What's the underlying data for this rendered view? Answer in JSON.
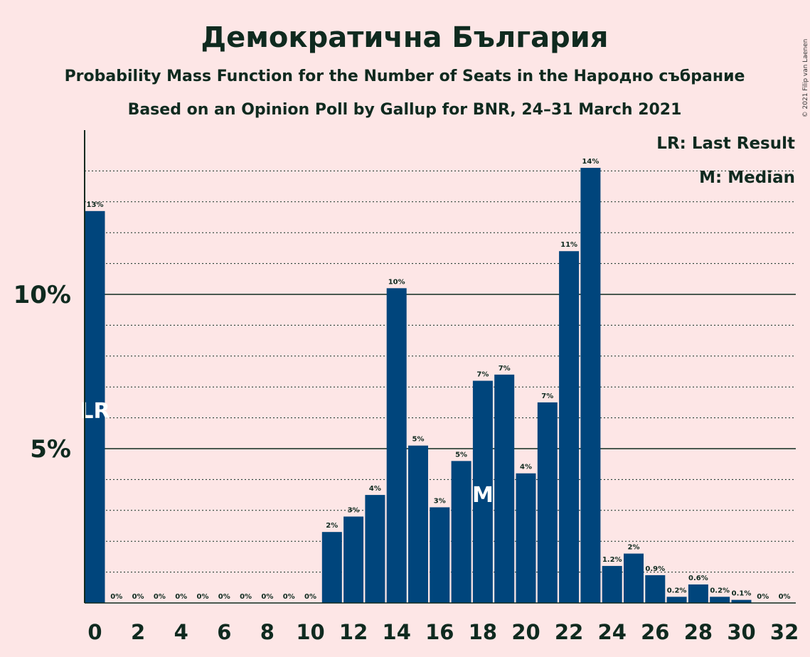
{
  "title": "Демократична България",
  "subtitle1": "Probability Mass Function for the Number of Seats in the Народно събрание",
  "subtitle2": "Based on an Opinion Poll by Gallup for BNR, 24–31 March 2021",
  "copyright": "© 2021 Filip van Laenen",
  "legend": {
    "lr": "LR: Last Result",
    "median": "M: Median"
  },
  "colors": {
    "bar": "#00457c",
    "background": "#fde6e6",
    "text": "#0f2a1f"
  },
  "chart_data": {
    "type": "bar",
    "xlabel": "",
    "ylabel": "",
    "ylim": [
      0,
      15.3
    ],
    "grid": "dotted every 1%, solid at 5% and 10%",
    "legend_placement": "top-right",
    "y_ticks": [
      {
        "value": 5,
        "label": "5%"
      },
      {
        "value": 10,
        "label": "10%"
      }
    ],
    "x_ticks": [
      0,
      2,
      4,
      6,
      8,
      10,
      12,
      14,
      16,
      18,
      20,
      22,
      24,
      26,
      28,
      30,
      32
    ],
    "categories": [
      0,
      1,
      2,
      3,
      4,
      5,
      6,
      7,
      8,
      9,
      10,
      11,
      12,
      13,
      14,
      15,
      16,
      17,
      18,
      19,
      20,
      21,
      22,
      23,
      24,
      25,
      26,
      27,
      28,
      29,
      30,
      31,
      32
    ],
    "values": [
      12.7,
      0,
      0,
      0,
      0,
      0,
      0,
      0,
      0,
      0,
      0,
      2.3,
      2.8,
      3.5,
      10.2,
      5.1,
      3.1,
      4.6,
      7.2,
      7.4,
      4.2,
      6.5,
      11.4,
      14.1,
      1.2,
      1.6,
      0.9,
      0.2,
      0.6,
      0.2,
      0.1,
      0,
      0
    ],
    "labels": [
      "13%",
      "0%",
      "0%",
      "0%",
      "0%",
      "0%",
      "0%",
      "0%",
      "0%",
      "0%",
      "0%",
      "2%",
      "3%",
      "4%",
      "10%",
      "5%",
      "3%",
      "5%",
      "7%",
      "7%",
      "4%",
      "7%",
      "11%",
      "14%",
      "1.2%",
      "2%",
      "0.9%",
      "0.2%",
      "0.6%",
      "0.2%",
      "0.1%",
      "0%",
      "0%"
    ],
    "last_result": {
      "seats": 0,
      "label": "LR"
    },
    "median": {
      "seats": 18,
      "label": "M"
    }
  }
}
